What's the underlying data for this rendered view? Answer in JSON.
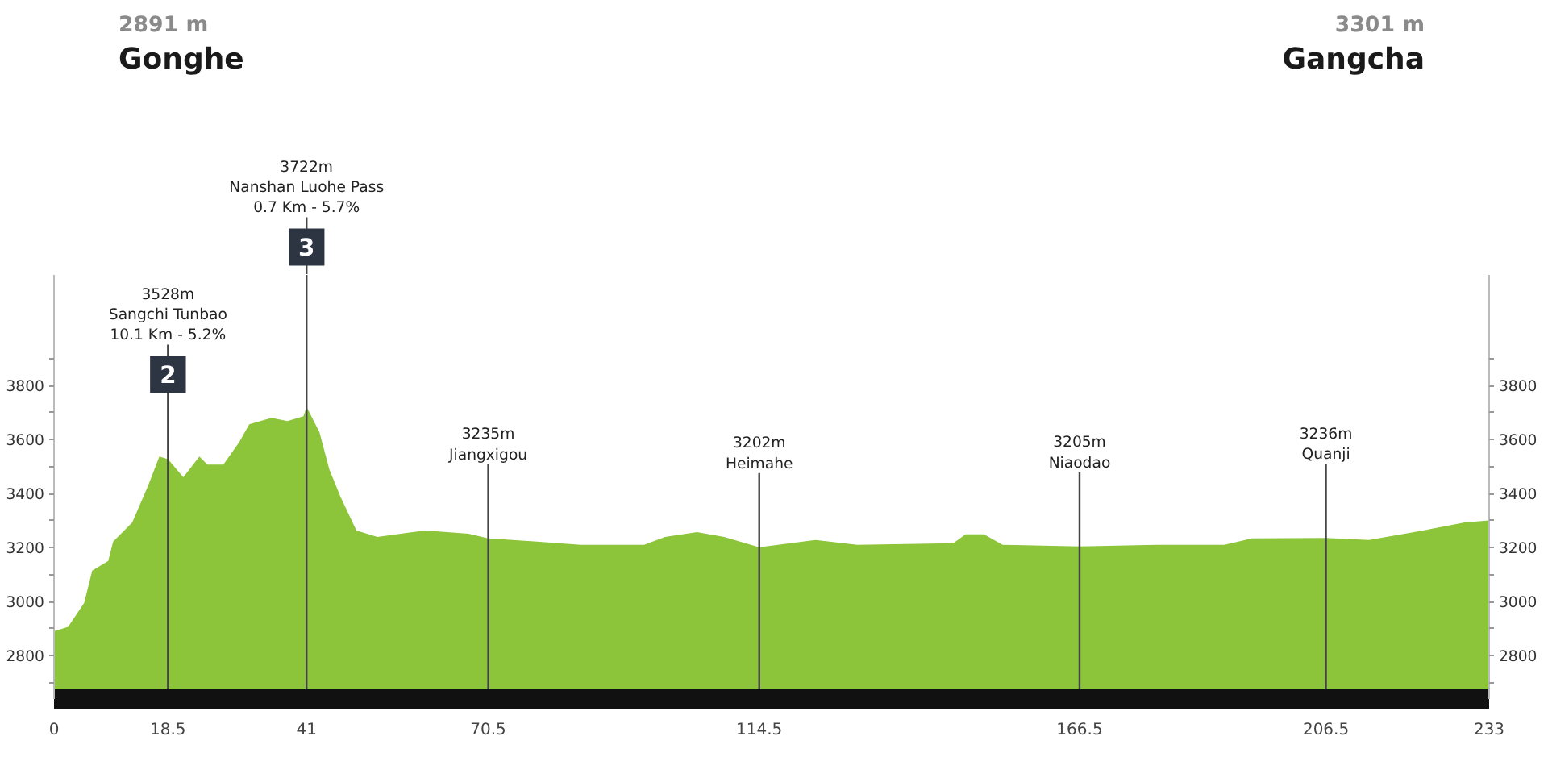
{
  "chart_data": {
    "type": "area",
    "annotations": [
      "2891 m",
      "Gonghe",
      "3301 m",
      "Gangcha",
      "2",
      "3"
    ],
    "ref_lines": [
      {
        "axis": "x",
        "value": 18.5,
        "label": "3528m\nSangchi Tunbao\n10.1 Km - 5.2%",
        "color": "#444444"
      },
      {
        "axis": "x",
        "value": 41,
        "label": "3722m\nNanshan Luohe Pass\n0.7 Km - 5.7%",
        "color": "#444444"
      },
      {
        "axis": "x",
        "value": 70.5,
        "label": "3235m\nJiangxigou",
        "color": "#444444"
      },
      {
        "axis": "x",
        "value": 114.5,
        "label": "3202m\nHeimahe",
        "color": "#444444"
      },
      {
        "axis": "x",
        "value": 166.5,
        "label": "3205m\nNiaodao",
        "color": "#444444"
      },
      {
        "axis": "x",
        "value": 206.5,
        "label": "3236m\nQuanji",
        "color": "#444444"
      }
    ],
    "x": [
      0,
      2.3,
      4.9,
      6.2,
      8.8,
      9.6,
      12.7,
      15.3,
      17.1,
      18.5,
      21,
      23.6,
      24.9,
      27.5,
      30.1,
      31.7,
      35.3,
      37.9,
      40.5,
      41,
      43.1,
      44.7,
      46.5,
      49.1,
      52.5,
      60.3,
      67.3,
      70.5,
      78.4,
      85.5,
      95.8,
      99.2,
      104.4,
      108.8,
      114.5,
      123.6,
      130.4,
      146,
      148,
      151,
      154,
      166.5,
      179,
      190,
      194.5,
      206.5,
      213.5,
      222.3,
      229,
      233
    ],
    "series": [
      {
        "color": "#8cc43a",
        "values": [
          2891,
          2907,
          2996,
          3115,
          3151,
          3223,
          3294,
          3431,
          3538,
          3528,
          3461,
          3538,
          3508,
          3508,
          3592,
          3657,
          3681,
          3669,
          3687,
          3722,
          3627,
          3490,
          3389,
          3264,
          3240,
          3264,
          3252,
          3235,
          3223,
          3211,
          3211,
          3240,
          3258,
          3240,
          3202,
          3229,
          3211,
          3217,
          3250,
          3250,
          3211,
          3205,
          3211,
          3211,
          3235,
          3236,
          3229,
          3264,
          3294,
          3301
        ]
      }
    ],
    "xlim": [
      0,
      233
    ],
    "xticks": [
      0,
      18.5,
      41,
      70.5,
      114.5,
      166.5,
      206.5,
      233
    ],
    "ylim": [
      2640,
      4210
    ],
    "yticks": [
      {
        "value": 2700,
        "label": null
      },
      2800,
      {
        "value": 2900,
        "label": null
      },
      3000,
      {
        "value": 3100,
        "label": null
      },
      3200,
      {
        "value": 3300,
        "label": null
      },
      3400,
      {
        "value": 3500,
        "label": null
      },
      3600,
      {
        "value": 3700,
        "label": null
      },
      3800,
      {
        "value": 3900,
        "label": null
      }
    ],
    "y2lim": [
      2640,
      4210
    ],
    "y2ticks": [
      {
        "value": 2700,
        "label": null
      },
      2800,
      {
        "value": 2900,
        "label": null
      },
      3000,
      {
        "value": 3100,
        "label": null
      },
      3200,
      {
        "value": 3300,
        "label": null
      },
      3400,
      {
        "value": 3500,
        "label": null
      },
      3600,
      {
        "value": 3700,
        "label": null
      },
      3800,
      {
        "value": 3900,
        "label": null
      }
    ]
  }
}
